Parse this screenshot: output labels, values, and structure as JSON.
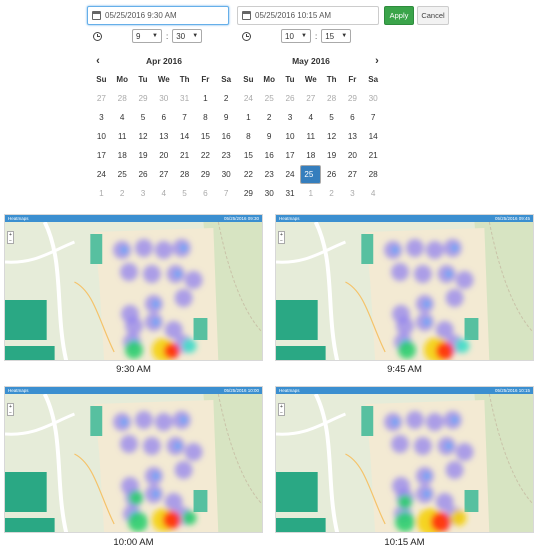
{
  "range": {
    "start_date": "05/25/2016 9:30 AM",
    "end_date": "05/25/2016 10:15 AM",
    "apply_label": "Apply",
    "cancel_label": "Cancel"
  },
  "time_left": {
    "hour": "9",
    "minute": "30",
    "sep": ":"
  },
  "time_right": {
    "hour": "10",
    "minute": "15",
    "sep": ":"
  },
  "calendar_left": {
    "title": "Apr 2016",
    "prev_icon": "chevron-left-icon",
    "days_of_week": [
      "Su",
      "Mo",
      "Tu",
      "We",
      "Th",
      "Fr",
      "Sa"
    ],
    "weeks": [
      [
        {
          "d": "27",
          "off": true
        },
        {
          "d": "28",
          "off": true
        },
        {
          "d": "29",
          "off": true
        },
        {
          "d": "30",
          "off": true
        },
        {
          "d": "31",
          "off": true
        },
        {
          "d": "1"
        },
        {
          "d": "2"
        }
      ],
      [
        {
          "d": "3"
        },
        {
          "d": "4"
        },
        {
          "d": "5"
        },
        {
          "d": "6"
        },
        {
          "d": "7"
        },
        {
          "d": "8"
        },
        {
          "d": "9"
        }
      ],
      [
        {
          "d": "10"
        },
        {
          "d": "11"
        },
        {
          "d": "12"
        },
        {
          "d": "13"
        },
        {
          "d": "14"
        },
        {
          "d": "15"
        },
        {
          "d": "16"
        }
      ],
      [
        {
          "d": "17"
        },
        {
          "d": "18"
        },
        {
          "d": "19"
        },
        {
          "d": "20"
        },
        {
          "d": "21"
        },
        {
          "d": "22"
        },
        {
          "d": "23"
        }
      ],
      [
        {
          "d": "24"
        },
        {
          "d": "25"
        },
        {
          "d": "26"
        },
        {
          "d": "27"
        },
        {
          "d": "28"
        },
        {
          "d": "29"
        },
        {
          "d": "30"
        }
      ],
      [
        {
          "d": "1",
          "off": true
        },
        {
          "d": "2",
          "off": true
        },
        {
          "d": "3",
          "off": true
        },
        {
          "d": "4",
          "off": true
        },
        {
          "d": "5",
          "off": true
        },
        {
          "d": "6",
          "off": true
        },
        {
          "d": "7",
          "off": true
        }
      ]
    ]
  },
  "calendar_right": {
    "title": "May 2016",
    "next_icon": "chevron-right-icon",
    "days_of_week": [
      "Su",
      "Mo",
      "Tu",
      "We",
      "Th",
      "Fr",
      "Sa"
    ],
    "weeks": [
      [
        {
          "d": "24",
          "off": true
        },
        {
          "d": "25",
          "off": true
        },
        {
          "d": "26",
          "off": true
        },
        {
          "d": "27",
          "off": true
        },
        {
          "d": "28",
          "off": true
        },
        {
          "d": "29",
          "off": true
        },
        {
          "d": "30",
          "off": true
        }
      ],
      [
        {
          "d": "1"
        },
        {
          "d": "2"
        },
        {
          "d": "3"
        },
        {
          "d": "4"
        },
        {
          "d": "5"
        },
        {
          "d": "6"
        },
        {
          "d": "7"
        }
      ],
      [
        {
          "d": "8"
        },
        {
          "d": "9"
        },
        {
          "d": "10"
        },
        {
          "d": "11"
        },
        {
          "d": "12"
        },
        {
          "d": "13"
        },
        {
          "d": "14"
        }
      ],
      [
        {
          "d": "15"
        },
        {
          "d": "16"
        },
        {
          "d": "17"
        },
        {
          "d": "18"
        },
        {
          "d": "19"
        },
        {
          "d": "20"
        },
        {
          "d": "21"
        }
      ],
      [
        {
          "d": "22"
        },
        {
          "d": "23"
        },
        {
          "d": "24"
        },
        {
          "d": "25",
          "selected": true
        },
        {
          "d": "26"
        },
        {
          "d": "27"
        },
        {
          "d": "28"
        }
      ],
      [
        {
          "d": "29"
        },
        {
          "d": "30"
        },
        {
          "d": "31"
        },
        {
          "d": "1",
          "off": true
        },
        {
          "d": "2",
          "off": true
        },
        {
          "d": "3",
          "off": true
        },
        {
          "d": "4",
          "off": true
        }
      ]
    ]
  },
  "panels": [
    {
      "title": "Heatmaps",
      "stamp": "05/25/2016 09:30",
      "caption": "9:30 AM"
    },
    {
      "title": "Heatmaps",
      "stamp": "05/25/2016 09:45",
      "caption": "9:45 AM"
    },
    {
      "title": "Heatmaps",
      "stamp": "05/25/2016 10:00",
      "caption": "10:00 AM"
    },
    {
      "title": "Heatmaps",
      "stamp": "05/25/2016 10:15",
      "caption": "10:15 AM"
    }
  ],
  "colors": {
    "accent": "#357ebd",
    "apply": "#3aa44a",
    "panel_bar": "#3b8fd0"
  }
}
